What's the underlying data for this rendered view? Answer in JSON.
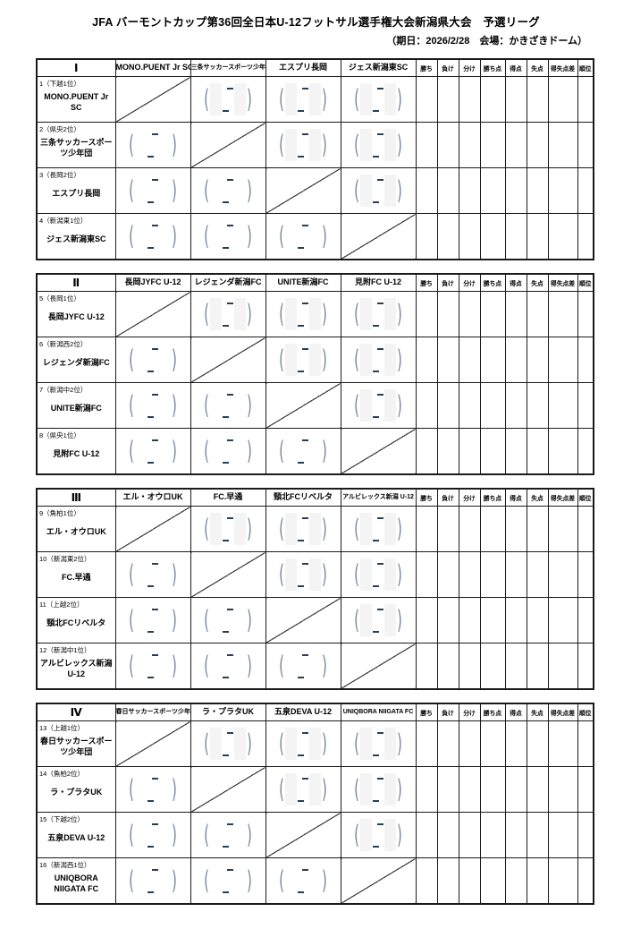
{
  "page": {
    "title": "JFA バーモントカップ第36回全日本U-12フットサル選手権大会新潟県大会　予選リーグ",
    "subtitle": "（期日：2026/2/28　会場：かきざきドーム）"
  },
  "stats_headers": [
    "勝ち",
    "負け",
    "分け",
    "勝ち点",
    "得点",
    "失点",
    "得失点差",
    "順位"
  ],
  "score_placeholder": {
    "open": "(",
    "close": ")",
    "dash": "-"
  },
  "colors": {
    "border": "#1a1a1a",
    "paren": "#76879e",
    "dash": "#2c3e54",
    "shaded_band": "#f4f4f4"
  },
  "groups": [
    {
      "numeral": "Ⅰ",
      "teams": [
        "MONO.PUENT Jr SC",
        "三条サッカースポーツ少年団",
        "エスプリ長岡",
        "ジェス新潟東SC"
      ],
      "rows": [
        {
          "seed": "1（下越1位）",
          "team": "MONO.PUENT Jr SC"
        },
        {
          "seed": "2（県央2位）",
          "team": "三条サッカースポーツ少年団"
        },
        {
          "seed": "3（長岡2位）",
          "team": "エスプリ長岡"
        },
        {
          "seed": "4（新潟東1位）",
          "team": "ジェス新潟東SC"
        }
      ]
    },
    {
      "numeral": "Ⅱ",
      "teams": [
        "長岡JYFC U-12",
        "レジェンダ新潟FC",
        "UNITE新潟FC",
        "見附FC U-12"
      ],
      "rows": [
        {
          "seed": "5（長岡1位）",
          "team": "長岡JYFC U-12"
        },
        {
          "seed": "6（新潟西2位）",
          "team": "レジェンダ新潟FC"
        },
        {
          "seed": "7（新潟中2位）",
          "team": "UNITE新潟FC"
        },
        {
          "seed": "8（県央1位）",
          "team": "見附FC U-12"
        }
      ]
    },
    {
      "numeral": "Ⅲ",
      "teams": [
        "エル・オウロUK",
        "FC.早通",
        "頸北FCリベルタ",
        "アルビレックス新潟 U-12"
      ],
      "rows": [
        {
          "seed": "9（魚柏1位）",
          "team": "エル・オウロUK"
        },
        {
          "seed": "10（新潟東2位）",
          "team": "FC.早通"
        },
        {
          "seed": "11（上越2位）",
          "team": "頸北FCリベルタ"
        },
        {
          "seed": "12（新潟中1位）",
          "team": "アルビレックス新潟 U-12"
        }
      ]
    },
    {
      "numeral": "Ⅳ",
      "teams": [
        "春日サッカースポーツ少年団",
        "ラ・プラタUK",
        "五泉DEVA U-12",
        "UNIQBORA NIIGATA FC"
      ],
      "rows": [
        {
          "seed": "13（上越1位）",
          "team": "春日サッカースポーツ少年団"
        },
        {
          "seed": "14（魚柏2位）",
          "team": "ラ・プラタUK"
        },
        {
          "seed": "15（下越2位）",
          "team": "五泉DEVA U-12"
        },
        {
          "seed": "16（新潟西1位）",
          "team": "UNIQBORA NIIGATA FC"
        }
      ]
    }
  ]
}
